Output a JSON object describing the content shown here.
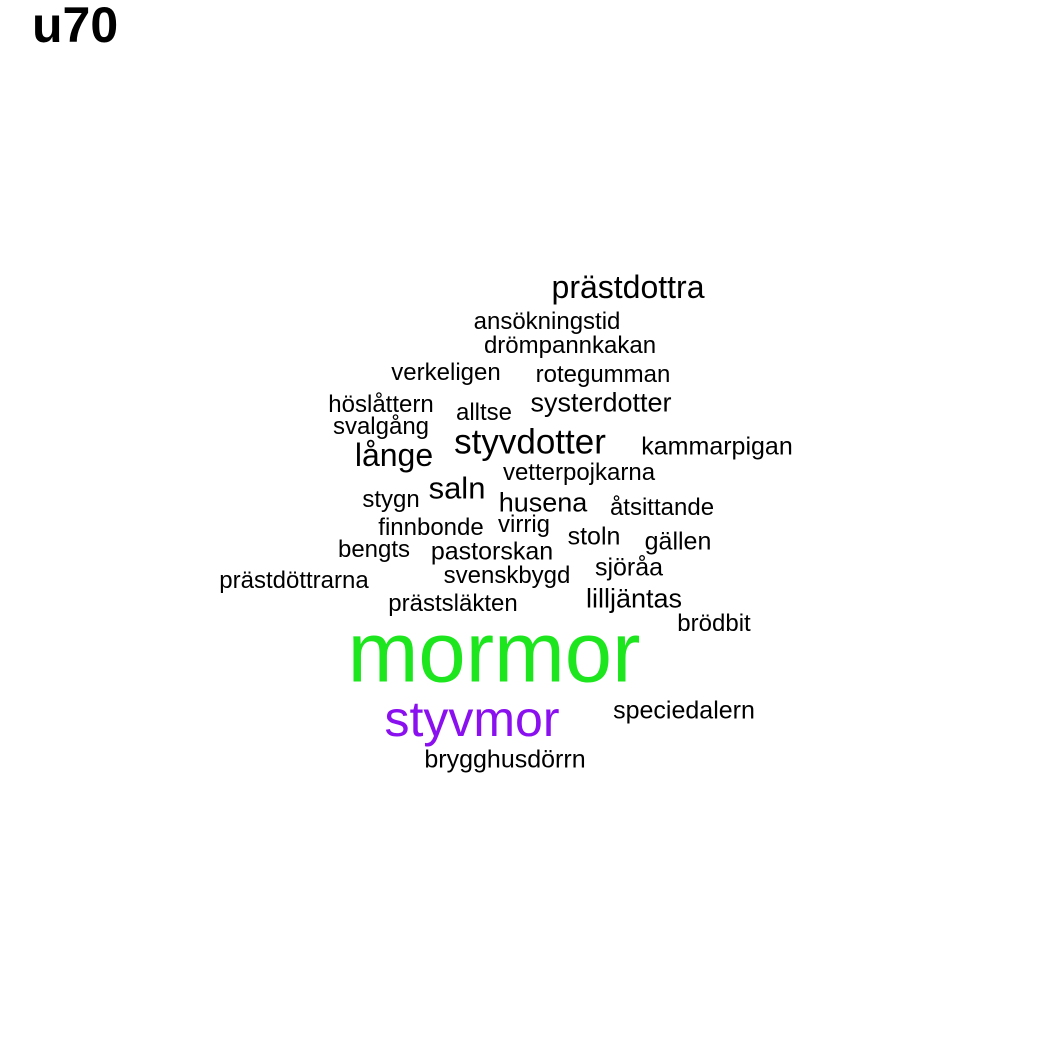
{
  "title": "u70",
  "colors": {
    "default": "#000000",
    "mormor": "#1ee61e",
    "styvmor": "#8a10f0"
  },
  "words": [
    {
      "text": "prästdottra"
    },
    {
      "text": "ansökningstid"
    },
    {
      "text": "drömpannkakan"
    },
    {
      "text": "verkeligen"
    },
    {
      "text": "rotegumman"
    },
    {
      "text": "höslåttern"
    },
    {
      "text": "alltse"
    },
    {
      "text": "systerdotter"
    },
    {
      "text": "svalgång"
    },
    {
      "text": "styvdotter"
    },
    {
      "text": "kammarpigan"
    },
    {
      "text": "långe"
    },
    {
      "text": "vetterpojkarna"
    },
    {
      "text": "stygn"
    },
    {
      "text": "saln"
    },
    {
      "text": "husena"
    },
    {
      "text": "åtsittande"
    },
    {
      "text": "finnbonde"
    },
    {
      "text": "virrig"
    },
    {
      "text": "stoln"
    },
    {
      "text": "gällen"
    },
    {
      "text": "bengts"
    },
    {
      "text": "pastorskan"
    },
    {
      "text": "prästdöttrarna"
    },
    {
      "text": "svenskbygd"
    },
    {
      "text": "sjöråa"
    },
    {
      "text": "lilljäntas"
    },
    {
      "text": "prästsläkten"
    },
    {
      "text": "brödbit"
    },
    {
      "text": "mormor",
      "color": "mormor"
    },
    {
      "text": "styvmor",
      "color": "styvmor"
    },
    {
      "text": "speciedalern"
    },
    {
      "text": "brygghusdörrn"
    }
  ]
}
